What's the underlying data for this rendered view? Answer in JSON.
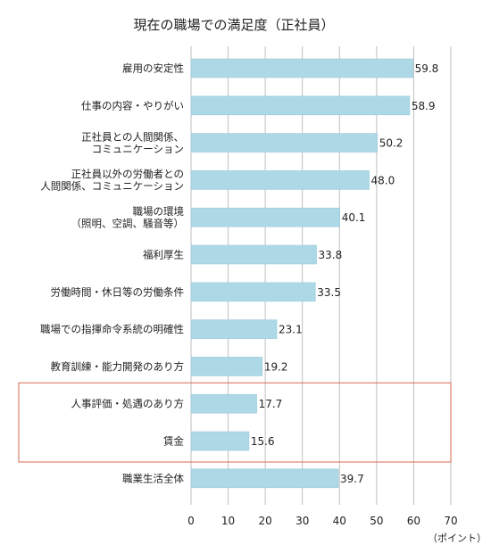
{
  "chart_data": {
    "type": "bar",
    "orientation": "horizontal",
    "title": "現在の職場での満足度（正社員）",
    "unit_label": "（ポイント）",
    "categories": [
      [
        "雇用の安定性"
      ],
      [
        "仕事の内容・やりがい"
      ],
      [
        "正社員との人間関係、",
        "コミュニケーション"
      ],
      [
        "正社員以外の労働者との",
        "人間関係、コミュニケーション"
      ],
      [
        "職場の環境",
        "（照明、空調、騒音等）"
      ],
      [
        "福利厚生"
      ],
      [
        "労働時間・休日等の労働条件"
      ],
      [
        "職場での指揮命令系統の明確性"
      ],
      [
        "教育訓練・能力開発のあり方"
      ],
      [
        "人事評価・処遇のあり方"
      ],
      [
        "賃金"
      ],
      [
        "職業生活全体"
      ]
    ],
    "values": [
      59.8,
      58.9,
      50.2,
      48.0,
      40.1,
      33.8,
      33.5,
      23.1,
      19.2,
      17.7,
      15.6,
      39.7
    ],
    "value_labels": [
      "59.8",
      "58.9",
      "50.2",
      "48.0",
      "40.1",
      "33.8",
      "33.5",
      "23.1",
      "19.2",
      "17.7",
      "15.6",
      "39.7"
    ],
    "xlim": [
      0,
      70
    ],
    "xticks": [
      "0",
      "10",
      "20",
      "30",
      "40",
      "50",
      "60",
      "70"
    ],
    "highlighted_categories": [
      9,
      10
    ],
    "grid": true,
    "colors": {
      "bar": "#add8e6",
      "bar_edge": "#9ccbdb",
      "grid": "#bfbfbf",
      "highlight_box": "#d9694f"
    }
  }
}
